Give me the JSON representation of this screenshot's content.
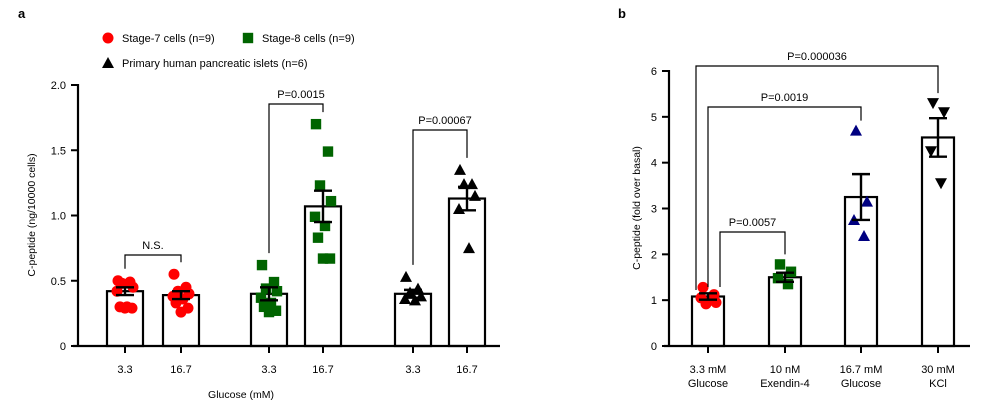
{
  "chart_data": [
    {
      "panel": "a",
      "type": "bar",
      "title": "",
      "xlabel": "Glucose (mM)",
      "ylabel": "C-peptide (ng/10000 cells)",
      "ylim": [
        0,
        2.0
      ],
      "yticks": [
        0,
        0.5,
        1.0,
        1.5,
        2.0
      ],
      "ytick_labels": [
        "0",
        "0.5",
        "1.0",
        "1.5",
        "2.0"
      ],
      "grid": false,
      "legend": {
        "placement": "top-center",
        "entries": [
          {
            "label": "Stage-7 cells (n=9)",
            "marker": "circle",
            "color": "#ff0000"
          },
          {
            "label": "Stage-8 cells (n=9)",
            "marker": "square",
            "color": "#006400"
          },
          {
            "label": "Primary human  pancreatic islets (n=6)",
            "marker": "triangle-up",
            "color": "#000000"
          }
        ]
      },
      "groups": [
        {
          "name": "Stage-7 cells",
          "marker": "circle",
          "color": "#ff0000",
          "categories": [
            "3.3",
            "16.7"
          ],
          "means": [
            0.42,
            0.39
          ],
          "sem": [
            0.03,
            0.03
          ],
          "points": [
            [
              0.5,
              0.49,
              0.48,
              0.45,
              0.42,
              0.3,
              0.3,
              0.29,
              0.29
            ],
            [
              0.55,
              0.45,
              0.42,
              0.4,
              0.38,
              0.36,
              0.33,
              0.29,
              0.26
            ]
          ],
          "comparison": {
            "label": "N.S."
          }
        },
        {
          "name": "Stage-8 cells",
          "marker": "square",
          "color": "#006400",
          "categories": [
            "3.3",
            "16.7"
          ],
          "means": [
            0.4,
            1.07
          ],
          "sem": [
            0.05,
            0.12
          ],
          "points": [
            [
              0.62,
              0.49,
              0.44,
              0.42,
              0.37,
              0.33,
              0.3,
              0.27,
              0.26
            ],
            [
              1.7,
              1.49,
              1.23,
              1.11,
              0.99,
              0.92,
              0.83,
              0.67,
              0.67
            ]
          ],
          "comparison": {
            "label": "P=0.0015"
          }
        },
        {
          "name": "Primary human pancreatic islets",
          "marker": "triangle-up",
          "color": "#000000",
          "categories": [
            "3.3",
            "16.7"
          ],
          "means": [
            0.4,
            1.13
          ],
          "sem": [
            0.03,
            0.09
          ],
          "points": [
            [
              0.53,
              0.44,
              0.41,
              0.38,
              0.36,
              0.35
            ],
            [
              1.35,
              1.24,
              1.24,
              1.15,
              1.05,
              0.75
            ]
          ],
          "comparison": {
            "label": "P=0.00067"
          }
        }
      ]
    },
    {
      "panel": "b",
      "type": "bar",
      "title": "",
      "xlabel": "",
      "ylabel": "C-peptide (fold over basal)",
      "ylim": [
        0,
        6
      ],
      "yticks": [
        0,
        1,
        2,
        3,
        4,
        5,
        6
      ],
      "ytick_labels": [
        "0",
        "1",
        "2",
        "3",
        "4",
        "5",
        "6"
      ],
      "grid": false,
      "categories": [
        {
          "line1": "3.3 mM",
          "line2": "Glucose"
        },
        {
          "line1": "10 nM",
          "line2": "Exendin-4"
        },
        {
          "line1": "16.7 mM",
          "line2": "Glucose"
        },
        {
          "line1": "30 mM",
          "line2": "KCl"
        }
      ],
      "series": [
        {
          "category": "3.3 mM Glucose",
          "marker": "circle",
          "color": "#ff0000",
          "mean": 1.08,
          "sem": 0.07,
          "points": [
            1.28,
            1.12,
            1.05,
            1.0,
            0.95,
            0.92
          ]
        },
        {
          "category": "10 nM Exendin-4",
          "marker": "square",
          "color": "#006400",
          "mean": 1.5,
          "sem": 0.1,
          "points": [
            1.78,
            1.62,
            1.48,
            1.35
          ]
        },
        {
          "category": "16.7 mM Glucose",
          "marker": "triangle-up",
          "color": "#000080",
          "mean": 3.25,
          "sem": 0.5,
          "points": [
            4.7,
            3.15,
            2.75,
            2.4
          ]
        },
        {
          "category": "30 mM KCl",
          "marker": "triangle-down",
          "color": "#000000",
          "mean": 4.55,
          "sem": 0.42,
          "points": [
            5.3,
            5.1,
            4.25,
            3.55
          ]
        }
      ],
      "comparisons": [
        {
          "from": 0,
          "to": 1,
          "label": "P=0.0057"
        },
        {
          "from": 0,
          "to": 2,
          "label": "P=0.0019"
        },
        {
          "from": 0,
          "to": 3,
          "label": "P=0.000036"
        }
      ]
    }
  ]
}
